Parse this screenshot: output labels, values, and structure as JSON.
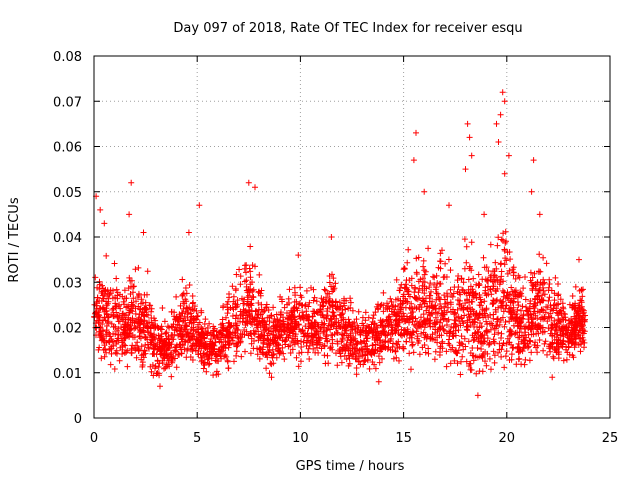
{
  "chart_data": {
    "type": "scatter",
    "title": "Day 097 of 2018, Rate Of TEC Index for receiver esqu",
    "xlabel": "GPS time / hours",
    "ylabel": "ROTI / TECUs",
    "xlim": [
      0,
      25
    ],
    "ylim": [
      0,
      0.08
    ],
    "xticks": [
      0,
      5,
      10,
      15,
      20,
      25
    ],
    "xtick_labels": [
      "0",
      "5",
      "10",
      "15",
      "20",
      "25"
    ],
    "yticks": [
      0,
      0.01,
      0.02,
      0.03,
      0.04,
      0.05,
      0.06,
      0.07,
      0.08
    ],
    "ytick_labels": [
      "0",
      "0.01",
      "0.02",
      "0.03",
      "0.04",
      "0.05",
      "0.06",
      "0.07",
      "0.08"
    ],
    "grid": true,
    "marker": "plus",
    "color": "#ff0000",
    "series": [
      {
        "name": "ROTI",
        "x_range": [
          0,
          23.8
        ],
        "sample_points": [
          [
            0.1,
            0.049
          ],
          [
            0.3,
            0.046
          ],
          [
            0.5,
            0.043
          ],
          [
            1.8,
            0.052
          ],
          [
            1.7,
            0.045
          ],
          [
            2.4,
            0.041
          ],
          [
            4.6,
            0.041
          ],
          [
            5.1,
            0.047
          ],
          [
            7.5,
            0.052
          ],
          [
            7.8,
            0.051
          ],
          [
            9.9,
            0.036
          ],
          [
            11.5,
            0.04
          ],
          [
            15.6,
            0.063
          ],
          [
            15.5,
            0.057
          ],
          [
            16.0,
            0.05
          ],
          [
            17.2,
            0.047
          ],
          [
            18.1,
            0.065
          ],
          [
            18.2,
            0.062
          ],
          [
            18.3,
            0.058
          ],
          [
            18.0,
            0.055
          ],
          [
            18.9,
            0.045
          ],
          [
            19.5,
            0.065
          ],
          [
            19.8,
            0.072
          ],
          [
            19.9,
            0.07
          ],
          [
            19.7,
            0.067
          ],
          [
            19.6,
            0.061
          ],
          [
            20.1,
            0.058
          ],
          [
            19.9,
            0.054
          ],
          [
            21.3,
            0.057
          ],
          [
            21.2,
            0.05
          ],
          [
            21.6,
            0.045
          ],
          [
            23.5,
            0.035
          ],
          [
            3.2,
            0.007
          ],
          [
            8.6,
            0.009
          ],
          [
            18.6,
            0.005
          ],
          [
            13.8,
            0.008
          ],
          [
            22.2,
            0.009
          ]
        ],
        "envelope": [
          [
            0.0,
            0.014,
            0.032
          ],
          [
            0.5,
            0.011,
            0.038
          ],
          [
            1.0,
            0.009,
            0.035
          ],
          [
            1.5,
            0.01,
            0.033
          ],
          [
            2.0,
            0.01,
            0.037
          ],
          [
            2.5,
            0.009,
            0.035
          ],
          [
            3.0,
            0.008,
            0.026
          ],
          [
            3.5,
            0.008,
            0.024
          ],
          [
            4.0,
            0.01,
            0.03
          ],
          [
            4.5,
            0.011,
            0.034
          ],
          [
            5.0,
            0.01,
            0.03
          ],
          [
            5.5,
            0.009,
            0.024
          ],
          [
            6.0,
            0.009,
            0.024
          ],
          [
            6.5,
            0.01,
            0.03
          ],
          [
            7.0,
            0.011,
            0.036
          ],
          [
            7.5,
            0.013,
            0.042
          ],
          [
            8.0,
            0.011,
            0.034
          ],
          [
            8.5,
            0.009,
            0.027
          ],
          [
            9.0,
            0.011,
            0.028
          ],
          [
            9.5,
            0.012,
            0.031
          ],
          [
            10.0,
            0.011,
            0.032
          ],
          [
            10.5,
            0.012,
            0.031
          ],
          [
            11.0,
            0.011,
            0.033
          ],
          [
            11.5,
            0.011,
            0.036
          ],
          [
            12.0,
            0.01,
            0.031
          ],
          [
            12.5,
            0.01,
            0.027
          ],
          [
            13.0,
            0.009,
            0.025
          ],
          [
            13.5,
            0.009,
            0.028
          ],
          [
            14.0,
            0.01,
            0.029
          ],
          [
            14.5,
            0.01,
            0.032
          ],
          [
            15.0,
            0.011,
            0.037
          ],
          [
            15.5,
            0.01,
            0.04
          ],
          [
            16.0,
            0.009,
            0.041
          ],
          [
            16.5,
            0.01,
            0.038
          ],
          [
            17.0,
            0.01,
            0.04
          ],
          [
            17.5,
            0.009,
            0.036
          ],
          [
            18.0,
            0.008,
            0.042
          ],
          [
            18.5,
            0.007,
            0.038
          ],
          [
            19.0,
            0.009,
            0.043
          ],
          [
            19.5,
            0.009,
            0.047
          ],
          [
            20.0,
            0.01,
            0.045
          ],
          [
            20.5,
            0.01,
            0.035
          ],
          [
            21.0,
            0.01,
            0.034
          ],
          [
            21.5,
            0.011,
            0.043
          ],
          [
            22.0,
            0.01,
            0.037
          ],
          [
            22.5,
            0.011,
            0.031
          ],
          [
            23.0,
            0.011,
            0.028
          ],
          [
            23.5,
            0.013,
            0.033
          ],
          [
            23.8,
            0.014,
            0.03
          ]
        ]
      }
    ]
  }
}
